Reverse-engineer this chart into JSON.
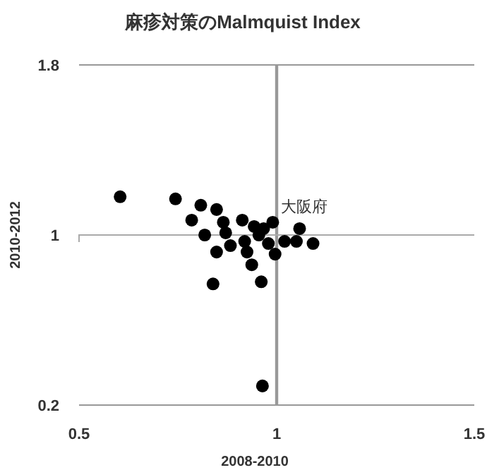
{
  "chart_data": {
    "type": "scatter",
    "title": "麻疹対策のMalmquist Index",
    "xlabel": "2008-2010",
    "ylabel": "2010-2012",
    "xlim": [
      0.5,
      1.5
    ],
    "xticks": [
      0.5,
      1,
      1.5
    ],
    "ylim": [
      0.2,
      1.8
    ],
    "yticks": [
      0.2,
      1,
      1.8
    ],
    "marker": "circle",
    "ref_lines": [
      {
        "axis": "x",
        "value": 1
      },
      {
        "axis": "y",
        "value": 1
      }
    ],
    "annotations": [
      {
        "text": "大阪府",
        "x": 1.06,
        "y": 1.03
      }
    ],
    "series": [
      {
        "color": "#000000",
        "x": [
          0.604,
          0.744,
          0.808,
          0.848,
          0.785,
          0.818,
          0.848,
          0.839,
          0.961,
          0.937,
          0.996,
          1.058,
          1.092,
          1.05,
          0.99,
          0.913,
          0.865,
          0.883,
          0.919,
          0.955,
          1.02,
          0.925,
          0.967,
          0.871,
          0.943,
          0.979,
          0.964
        ],
        "values": [
          1.18,
          1.17,
          1.14,
          1.12,
          1.07,
          1.0,
          0.92,
          0.77,
          0.78,
          0.86,
          0.91,
          1.03,
          0.96,
          0.97,
          1.06,
          1.07,
          1.06,
          0.95,
          0.97,
          1.0,
          0.97,
          0.92,
          1.03,
          1.01,
          1.04,
          0.96,
          0.29
        ]
      }
    ]
  }
}
